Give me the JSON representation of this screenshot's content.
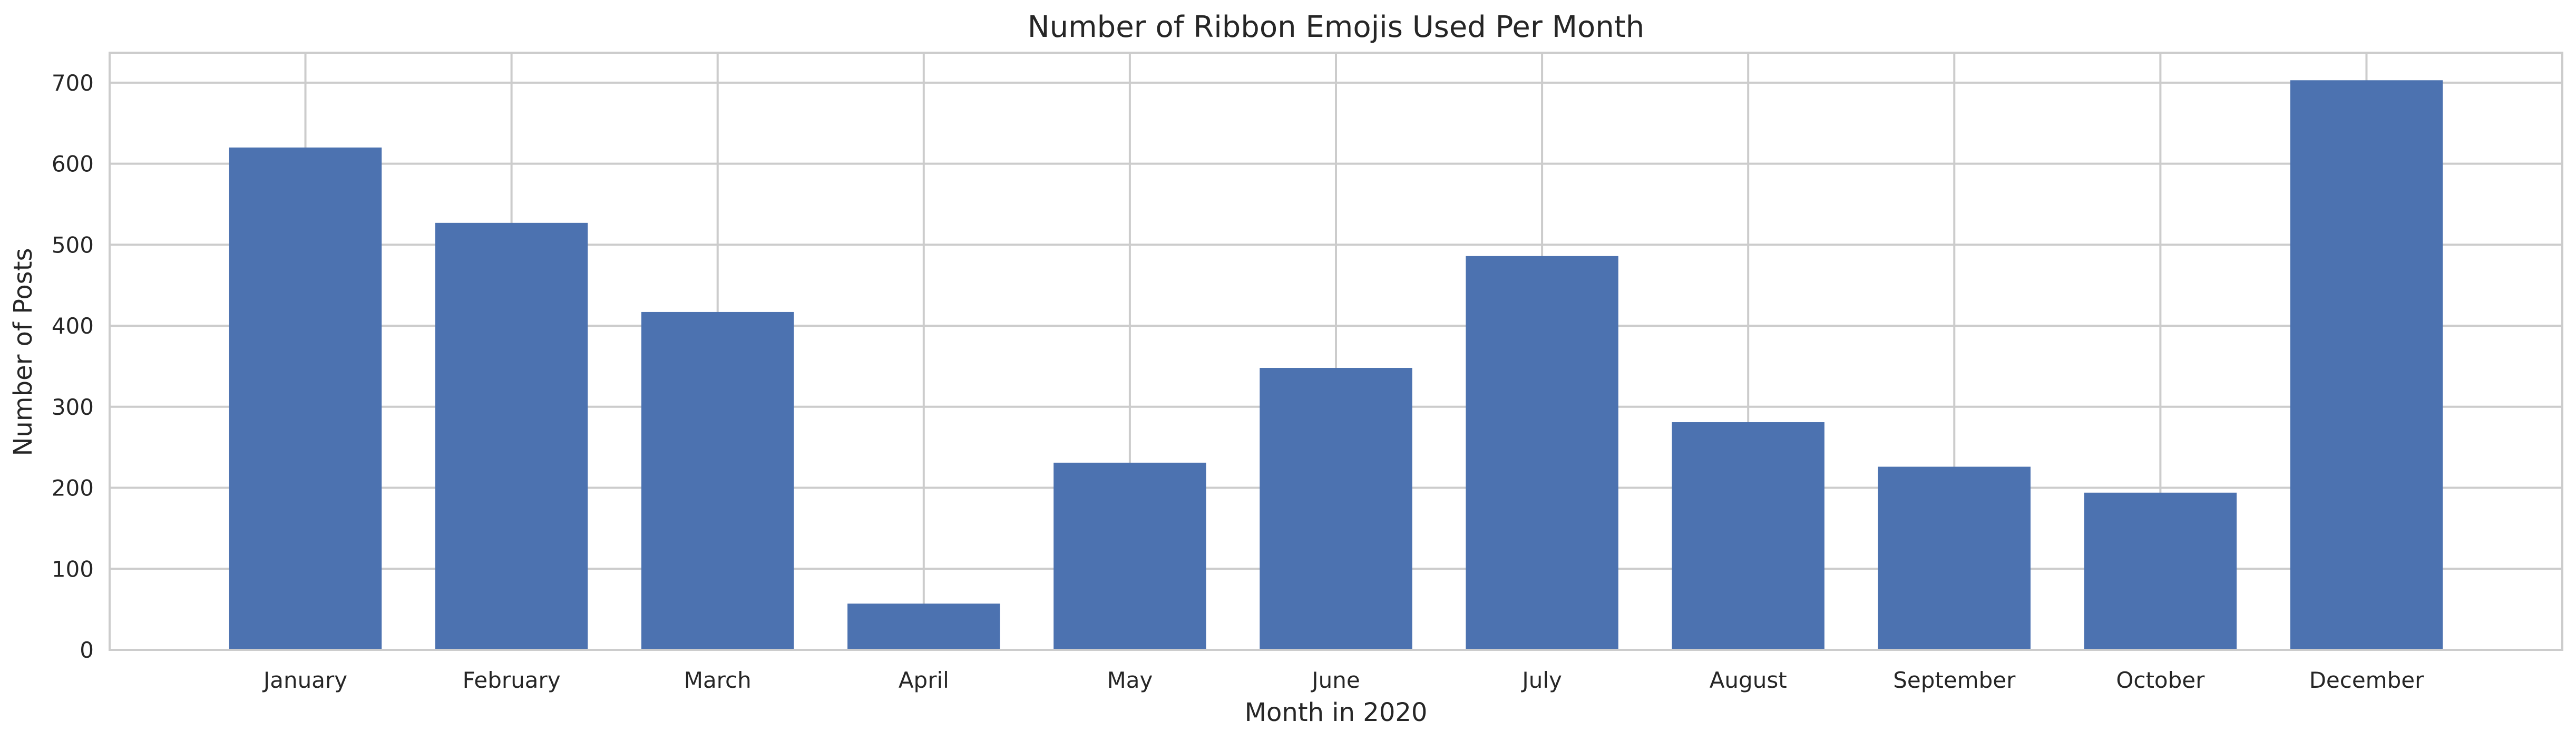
{
  "chart_data": {
    "type": "bar",
    "title": "Number of Ribbon Emojis Used Per Month",
    "xlabel": "Month in 2020",
    "ylabel": "Number of Posts",
    "categories": [
      "January",
      "February",
      "March",
      "April",
      "May",
      "June",
      "July",
      "August",
      "September",
      "October",
      "December"
    ],
    "values": [
      620,
      527,
      417,
      57,
      231,
      348,
      486,
      281,
      226,
      194,
      703
    ],
    "ylim": [
      0,
      737
    ],
    "yticks": [
      0,
      100,
      200,
      300,
      400,
      500,
      600,
      700
    ],
    "grid": true,
    "bar_color": "#4c72b0",
    "grid_color": "#cccccc",
    "text_color": "#262626"
  }
}
